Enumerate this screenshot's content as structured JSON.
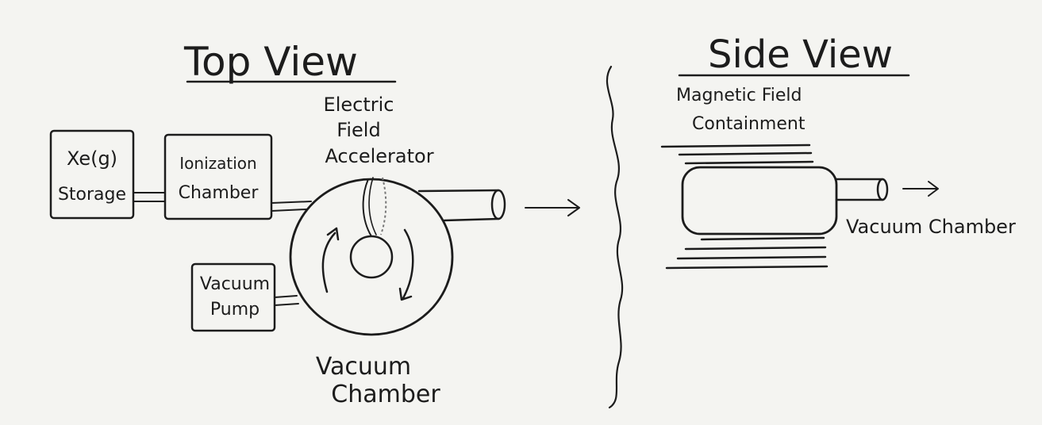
{
  "top_view": {
    "title": "Top View",
    "storage_label_1": "Xe(g)",
    "storage_label_2": "Storage",
    "ionization_label_1": "Ionization",
    "ionization_label_2": "Chamber",
    "accelerator_label_1": "Electric",
    "accelerator_label_2": "Field",
    "accelerator_label_3": "Accelerator",
    "pump_label_1": "Vacuum",
    "pump_label_2": "Pump",
    "chamber_label_1": "Vacuum",
    "chamber_label_2": "Chamber"
  },
  "side_view": {
    "title": "Side View",
    "containment_label_1": "Magnetic Field",
    "containment_label_2": "Containment",
    "chamber_label": "Vacuum Chamber"
  },
  "ink_color": "#1c1c1c",
  "paper_color": "#f4f4f1"
}
